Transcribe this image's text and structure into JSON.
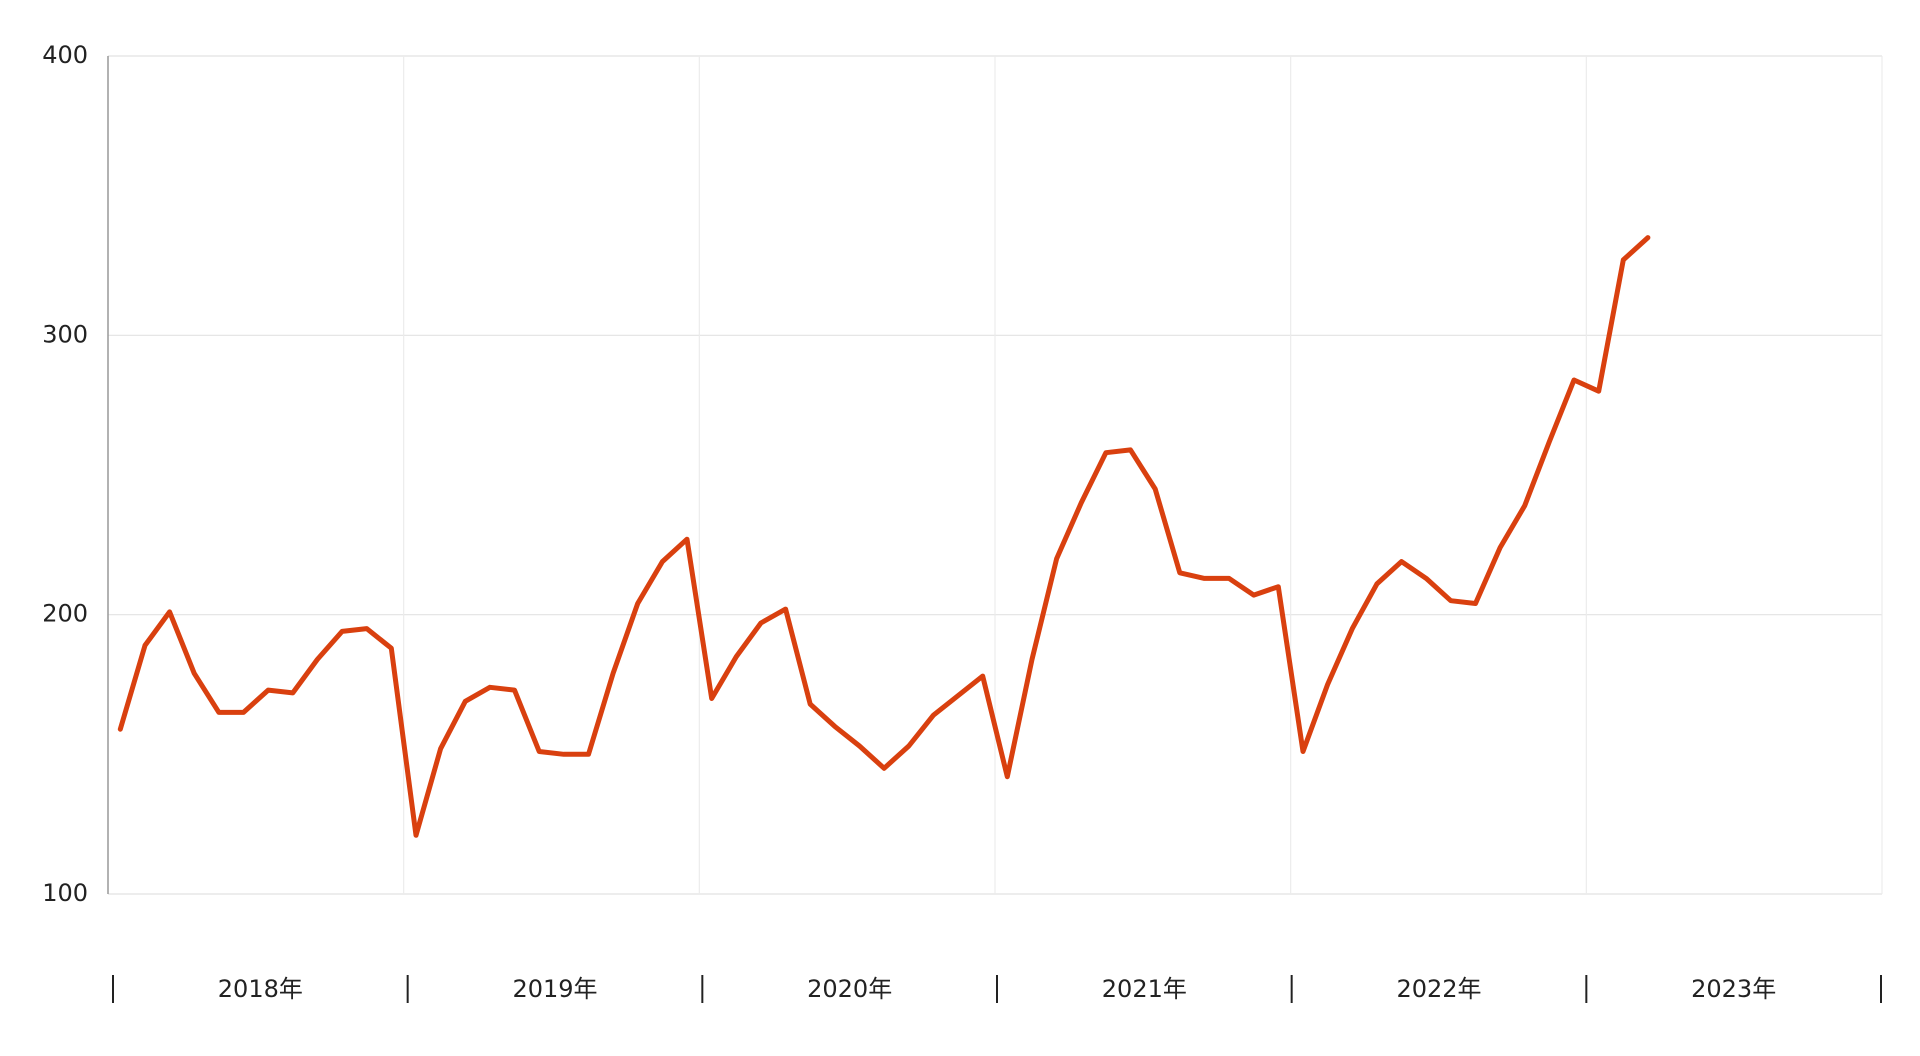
{
  "chart_data": {
    "type": "line",
    "x_labels": [
      "2018年",
      "2019年",
      "2020年",
      "2021年",
      "2022年",
      "2023年"
    ],
    "series": [
      {
        "color": "#d9400f",
        "values": [
          159,
          189,
          201,
          179,
          165,
          165,
          173,
          172,
          184,
          194,
          195,
          188,
          121,
          152,
          169,
          174,
          173,
          151,
          150,
          150,
          179,
          204,
          219,
          227,
          170,
          185,
          197,
          202,
          168,
          160,
          153,
          145,
          153,
          164,
          171,
          178,
          142,
          184,
          220,
          240,
          258,
          259,
          245,
          215,
          213,
          213,
          207,
          210,
          151,
          175,
          195,
          211,
          219,
          213,
          205,
          204,
          224,
          239,
          262,
          284,
          280,
          327,
          335
        ]
      }
    ],
    "ylim": [
      100,
      400
    ],
    "yticks": [
      100,
      200,
      300,
      400
    ],
    "grid": true
  }
}
